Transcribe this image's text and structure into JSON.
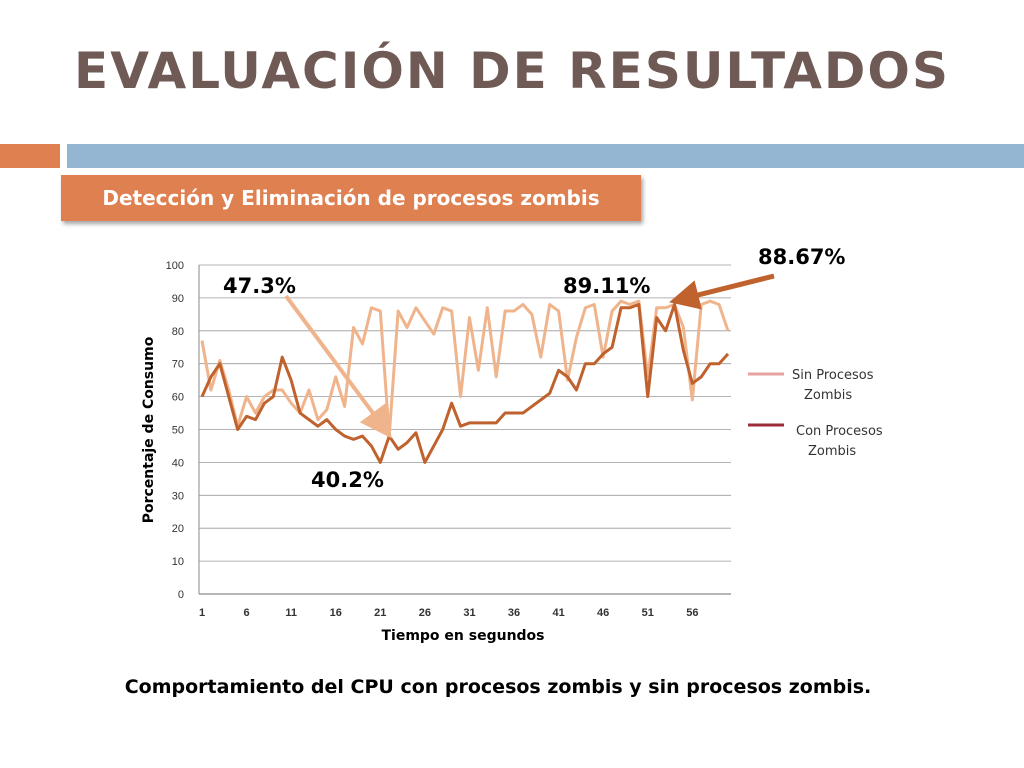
{
  "slide": {
    "title": "EVALUACIÓN DE RESULTADOS",
    "subtitle": "Detección y Eliminación de procesos zombis",
    "caption": "Comportamiento del CPU con procesos zombis y sin procesos zombis."
  },
  "colors": {
    "title": "#6f5a55",
    "accent_orange": "#df8050",
    "accent_blue": "#94b6d2"
  },
  "chart_data": {
    "type": "line",
    "xlabel": "Tiempo en segundos",
    "ylabel": "Porcentaje de Consumo",
    "ylim": [
      0,
      100
    ],
    "yticks": [
      0,
      10,
      20,
      30,
      40,
      50,
      60,
      70,
      80,
      90,
      100
    ],
    "xticks": [
      1,
      6,
      11,
      16,
      21,
      26,
      31,
      36,
      41,
      46,
      51,
      56
    ],
    "grid": true,
    "legend_position": "right",
    "x": [
      1,
      2,
      3,
      4,
      5,
      6,
      7,
      8,
      9,
      10,
      11,
      12,
      13,
      14,
      15,
      16,
      17,
      18,
      19,
      20,
      21,
      22,
      23,
      24,
      25,
      26,
      27,
      28,
      29,
      30,
      31,
      32,
      33,
      34,
      35,
      36,
      37,
      38,
      39,
      40,
      41,
      42,
      43,
      44,
      45,
      46,
      47,
      48,
      49,
      50,
      51,
      52,
      53,
      54,
      55,
      56,
      57,
      58,
      59,
      60
    ],
    "series": [
      {
        "name": "Sin Procesos Zombis",
        "color": "#f0b48c",
        "legend_color": "#e7a2a2",
        "values": [
          77,
          62,
          71,
          62,
          51,
          60,
          55,
          60,
          62,
          62,
          58,
          55,
          62,
          53,
          56,
          66,
          57,
          81,
          76,
          87,
          86,
          48,
          86,
          81,
          87,
          83,
          79,
          87,
          86,
          60,
          84,
          68,
          87,
          66,
          86,
          86,
          88,
          85,
          72,
          88,
          86,
          65,
          78,
          87,
          88,
          72,
          86,
          89,
          88,
          89,
          66,
          87,
          87,
          88,
          81,
          59,
          88,
          89,
          88,
          80
        ]
      },
      {
        "name": "Con Procesos Zombis",
        "color": "#c0622e",
        "legend_color": "#9b2d3a",
        "values": [
          60,
          66,
          70,
          60,
          50,
          54,
          53,
          58,
          60,
          72,
          65,
          55,
          53,
          51,
          53,
          50,
          48,
          47,
          48,
          45,
          40,
          48,
          44,
          46,
          49,
          40,
          45,
          50,
          58,
          51,
          52,
          52,
          52,
          52,
          55,
          55,
          55,
          57,
          59,
          61,
          68,
          66,
          62,
          70,
          70,
          73,
          75,
          87,
          87,
          88,
          60,
          84,
          80,
          88,
          74,
          64,
          66,
          70,
          70,
          73
        ]
      }
    ],
    "annotations": [
      "47.3%",
      "40.2%",
      "89.11%",
      "88.67%"
    ]
  }
}
